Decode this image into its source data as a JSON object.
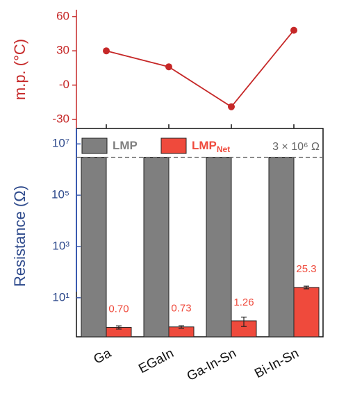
{
  "chart_data": [
    {
      "type": "line",
      "ylabel": "m.p. (°C)",
      "color": "#c62828",
      "values": [
        30,
        16,
        -19,
        48
      ],
      "ylim": [
        -38,
        66
      ],
      "yticks": [
        60,
        30,
        {
          "value": 0,
          "label": "-0"
        },
        -30
      ]
    },
    {
      "type": "bar",
      "ylabel": "Resistance (Ω)",
      "log_scale": true,
      "categories": [
        "Ga",
        "EGaIn",
        "Ga-In-Sn",
        "Bi-In-Sn"
      ],
      "series": [
        {
          "name": "LMP",
          "color": "#7f7f7f",
          "values": [
            3000000,
            3000000,
            3000000,
            3000000
          ]
        },
        {
          "name": "LMP",
          "subscript": "Net",
          "color": "#ef4a3c",
          "values": [
            0.7,
            0.73,
            1.26,
            25.3
          ],
          "value_labels": [
            "0.70",
            "0.73",
            "1.26",
            "25.3"
          ],
          "errors": [
            0.1,
            0.08,
            0.5,
            3
          ]
        }
      ],
      "ylim": [
        0.3,
        40000000
      ],
      "yticks": [
        {
          "value": 10,
          "label": "10¹"
        },
        {
          "value": 1000,
          "label": "10³"
        },
        {
          "value": 100000,
          "label": "10⁵"
        },
        {
          "value": 10000000,
          "label": "10⁷"
        }
      ],
      "reference_line": {
        "value": 3000000,
        "label": "3 × 10⁶ Ω"
      },
      "legend": "top"
    }
  ]
}
